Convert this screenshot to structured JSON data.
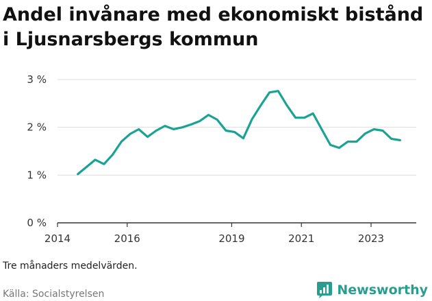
{
  "title": "Andel invånare med ekonomiskt bistånd i Ljusnarsbergs kommun",
  "note": "Tre månaders medelvärden.",
  "source": "Källa: Socialstyrelsen",
  "brand": {
    "name": "Newsworthy",
    "icon": "newsworthy-logo-icon",
    "color": "#2a9d8f"
  },
  "colors": {
    "line": "#1aa393",
    "axis": "#333333",
    "grid": "#dddddd"
  },
  "chart_data": {
    "type": "line",
    "title": "Andel invånare med ekonomiskt bistånd i Ljusnarsbergs kommun",
    "xlabel": "",
    "ylabel": "",
    "x_ticks": [
      "2014",
      "2016",
      "2019",
      "2021",
      "2023"
    ],
    "y_ticks": [
      "0 %",
      "1 %",
      "2 %",
      "3 %"
    ],
    "ylim": [
      0,
      3
    ],
    "grid": "horizontal",
    "series": [
      {
        "x": [
          "2014-08",
          "2014-11",
          "2015-02",
          "2015-05",
          "2015-08",
          "2015-11",
          "2016-02",
          "2016-05",
          "2016-08",
          "2016-11",
          "2017-02",
          "2017-05",
          "2017-08",
          "2017-11",
          "2018-02",
          "2018-05",
          "2018-08",
          "2018-11",
          "2019-02",
          "2019-05",
          "2019-08",
          "2019-11",
          "2020-02",
          "2020-05",
          "2020-08",
          "2020-11",
          "2021-02",
          "2021-05",
          "2021-08",
          "2021-11",
          "2022-02",
          "2022-05",
          "2022-08",
          "2022-11",
          "2023-02",
          "2023-05",
          "2023-08",
          "2023-11"
        ],
        "values": [
          1.02,
          1.17,
          1.32,
          1.23,
          1.43,
          1.7,
          1.86,
          1.96,
          1.8,
          1.93,
          2.03,
          1.96,
          2.0,
          2.06,
          2.13,
          2.26,
          2.16,
          1.93,
          1.9,
          1.77,
          2.17,
          2.46,
          2.73,
          2.76,
          2.46,
          2.2,
          2.2,
          2.29,
          1.96,
          1.63,
          1.57,
          1.7,
          1.7,
          1.87,
          1.96,
          1.93,
          1.76,
          1.73
        ]
      }
    ]
  }
}
